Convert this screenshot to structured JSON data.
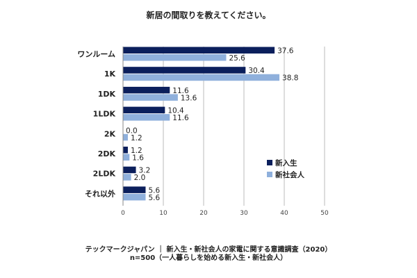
{
  "chart_data": {
    "type": "bar",
    "orientation": "horizontal",
    "title": "新居の間取りを教えてください。",
    "categories": [
      "ワンルーム",
      "1K",
      "1DK",
      "1LDK",
      "2K",
      "2DK",
      "2LDK",
      "それ以外"
    ],
    "series": [
      {
        "name": "新入生",
        "color": "#0b1f5c",
        "values": [
          37.6,
          30.4,
          11.6,
          10.4,
          0.0,
          1.2,
          3.2,
          5.6
        ]
      },
      {
        "name": "新社会人",
        "color": "#8fb0dc",
        "values": [
          25.6,
          38.8,
          13.6,
          11.6,
          1.2,
          1.6,
          2.0,
          5.6
        ]
      }
    ],
    "xlim": [
      0,
      50
    ],
    "xticks": [
      "0",
      "10",
      "20",
      "30",
      "40",
      "50"
    ],
    "grid": true,
    "legend": "right",
    "footer": [
      "テックマークジャパン ｜ 新入生・新社会人の家電に関する意識調査（2020）",
      "n=500（一人暮らしを始める新入生・新社会人）"
    ]
  }
}
